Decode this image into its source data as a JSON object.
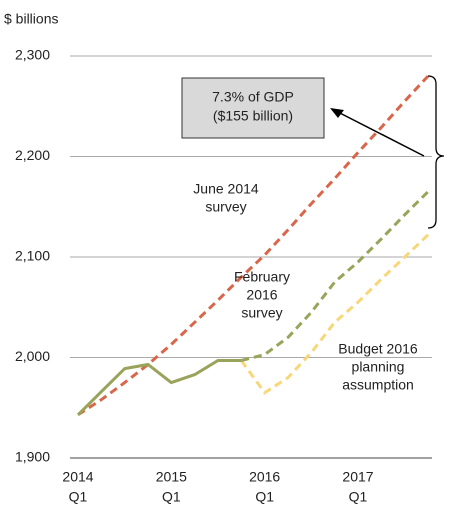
{
  "chart_data": {
    "type": "line",
    "y_label": "$ billions",
    "categories": [
      [
        "2014",
        "Q1"
      ],
      null,
      null,
      null,
      [
        "2015",
        "Q1"
      ],
      null,
      null,
      null,
      [
        "2016",
        "Q1"
      ],
      null,
      null,
      null,
      [
        "2017",
        "Q1"
      ],
      null,
      null,
      null
    ],
    "series": [
      {
        "color": "#9aa35a",
        "dash": false,
        "values": [
          1943,
          1966,
          1989,
          1993,
          1975,
          1983,
          1997,
          1997,
          null,
          null,
          null,
          null,
          null,
          null,
          null,
          null
        ]
      },
      {
        "color": "#d9664a",
        "dash": true,
        "label": [
          "June 2014",
          "survey"
        ],
        "values": [
          1943,
          1958,
          1975,
          1993,
          2013,
          2035,
          2057,
          2080,
          2102,
          2127,
          2153,
          2178,
          2204,
          2229,
          2255,
          2280
        ]
      },
      {
        "color": "#9aa35a",
        "dash": true,
        "label": [
          "February",
          "2016",
          "survey"
        ],
        "values": [
          null,
          null,
          null,
          null,
          null,
          null,
          null,
          1997,
          2003,
          2020,
          2045,
          2075,
          2095,
          2118,
          2142,
          2165
        ]
      },
      {
        "color": "#f7d77a",
        "dash": true,
        "label": [
          "Budget 2016",
          "planning",
          "assumption"
        ],
        "values": [
          null,
          null,
          null,
          null,
          null,
          null,
          null,
          1997,
          1965,
          1980,
          2005,
          2035,
          2055,
          2078,
          2100,
          2122
        ]
      }
    ],
    "ylim": [
      1900,
      2300
    ],
    "yticks": [
      {
        "value": 1900,
        "label": "1,900"
      },
      {
        "value": 2000,
        "label": "2,000"
      },
      {
        "value": 2100,
        "label": "2,100"
      },
      {
        "value": 2200,
        "label": "2,200"
      },
      {
        "value": 2300,
        "label": "2,300"
      }
    ],
    "grid": true,
    "callout": [
      "7.3% of GDP",
      "($155 billion)"
    ]
  }
}
